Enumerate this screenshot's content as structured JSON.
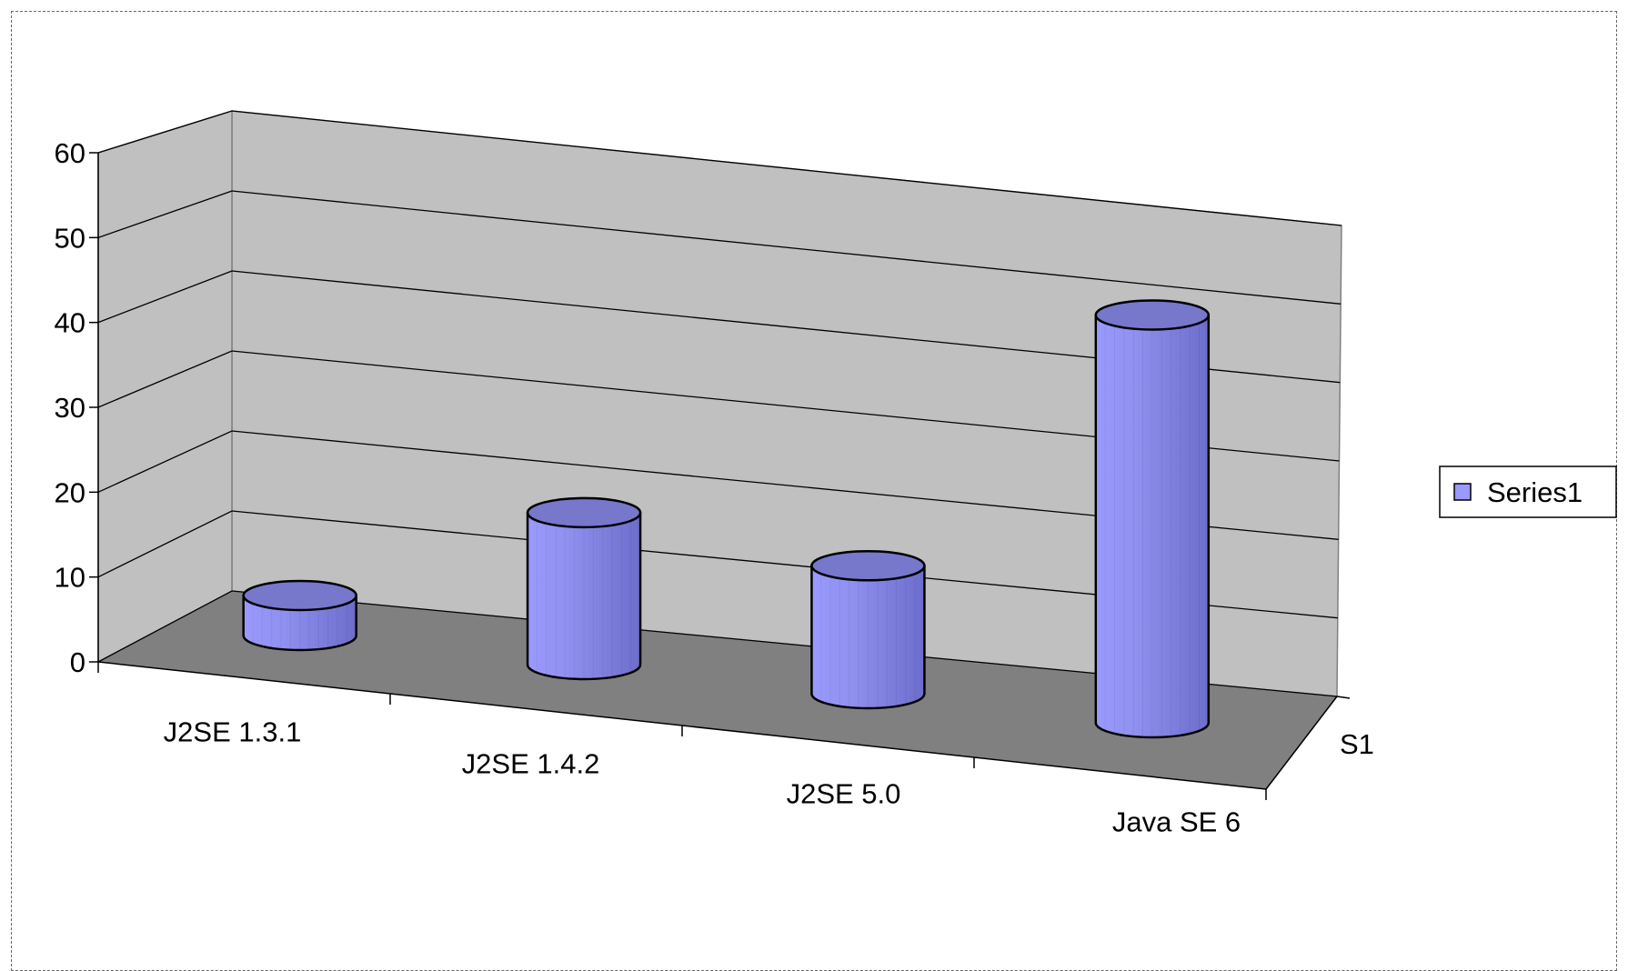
{
  "chart_data": {
    "type": "bar",
    "bar_shape": "cylinder-3d",
    "categories": [
      "J2SE 1.3.1",
      "J2SE 1.4.2",
      "J2SE 5.0",
      "Java SE 6"
    ],
    "series": [
      {
        "name": "Series1",
        "values": [
          5,
          19,
          16,
          51
        ]
      }
    ],
    "depth_axis_label": "S1",
    "ylim": [
      0,
      60
    ],
    "yticks": [
      0,
      10,
      20,
      30,
      40,
      50,
      60
    ],
    "grid": true,
    "legend": "right",
    "colors": {
      "bar": "#9999ff",
      "bar_top": "#7777cc",
      "wall": "#c0c0c0",
      "floor": "#808080"
    }
  }
}
